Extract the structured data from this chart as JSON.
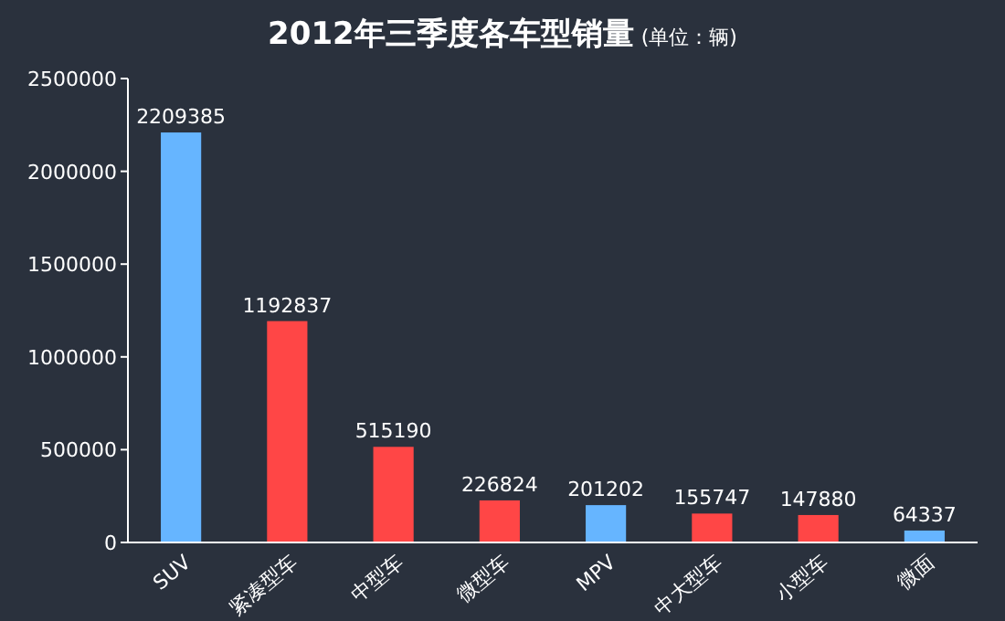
{
  "chart_data": {
    "type": "bar",
    "title": "2012年三季度各车型销量",
    "subtitle": "(单位：辆)",
    "categories": [
      "SUV",
      "紧凑型车",
      "中型车",
      "微型车",
      "MPV",
      "中大型车",
      "小型车",
      "微面"
    ],
    "values": [
      2209385,
      1192837,
      515190,
      226824,
      201202,
      155747,
      147880,
      64337
    ],
    "colors": [
      "#66b5ff",
      "#ff4646",
      "#ff4646",
      "#ff4646",
      "#66b5ff",
      "#ff4646",
      "#ff4646",
      "#66b5ff"
    ],
    "ylim": [
      0,
      2500000
    ],
    "yticks": [
      0,
      500000,
      1000000,
      1500000,
      2000000,
      2500000
    ],
    "data_labels": true,
    "grid": false
  }
}
